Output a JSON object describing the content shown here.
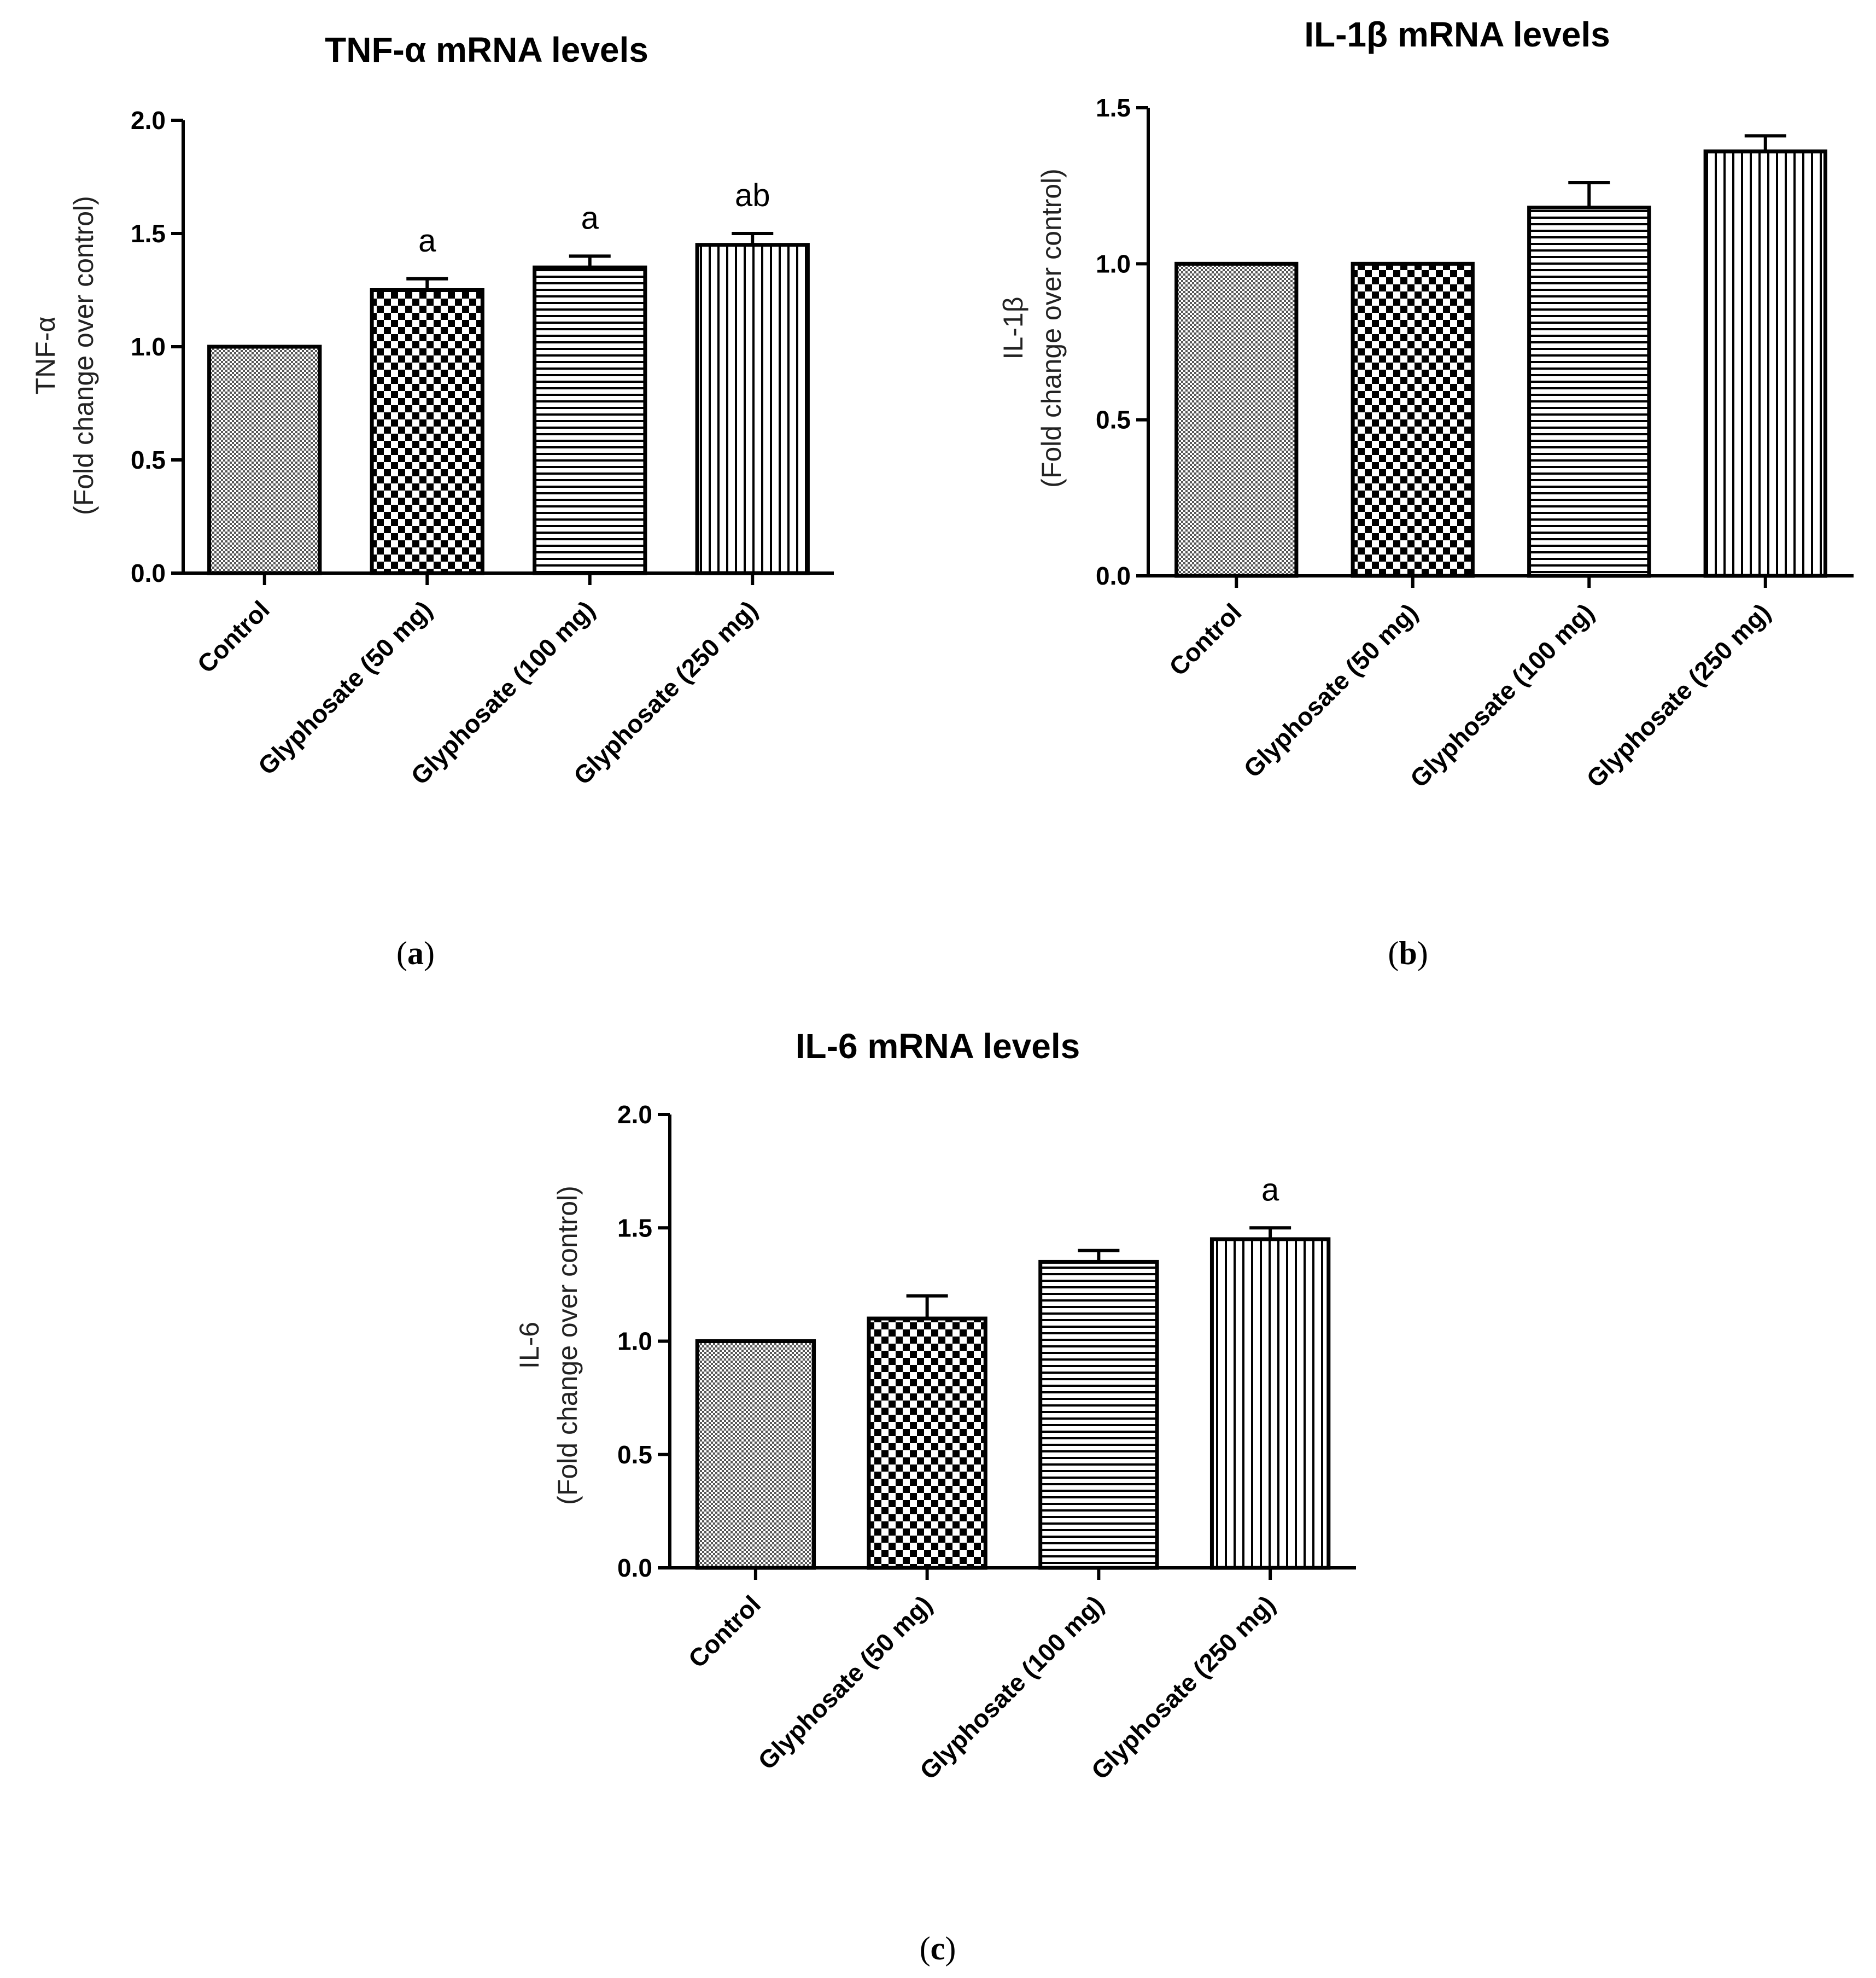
{
  "chart_data": [
    {
      "type": "bar",
      "panel": "a",
      "title": "TNF-α mRNA levels",
      "ylabel_main": "TNF-α",
      "ylabel_sub": "(Fold change over control)",
      "xlabel": "",
      "categories": [
        "Control",
        "Glyphosate (50 mg)",
        "Glyphosate (100 mg)",
        "Glyphosate (250 mg)"
      ],
      "values": [
        1.0,
        1.25,
        1.35,
        1.45
      ],
      "errors": [
        0.0,
        0.05,
        0.05,
        0.05
      ],
      "significance": [
        "",
        "a",
        "a",
        "ab"
      ],
      "patterns": [
        "fine",
        "checker",
        "hstripe",
        "vstripe"
      ],
      "ylim": [
        0.0,
        2.0
      ],
      "yticks": [
        0.0,
        0.5,
        1.0,
        1.5,
        2.0
      ],
      "ytick_labels": [
        "0.0",
        "0.5",
        "1.0",
        "1.5",
        "2.0"
      ],
      "grid": false
    },
    {
      "type": "bar",
      "panel": "b",
      "title": "IL-1β mRNA levels",
      "ylabel_main": "IL-1β",
      "ylabel_sub": "(Fold change over control)",
      "xlabel": "",
      "categories": [
        "Control",
        "Glyphosate (50 mg)",
        "Glyphosate (100 mg)",
        "Glyphosate (250 mg)"
      ],
      "values": [
        1.0,
        1.0,
        1.18,
        1.36
      ],
      "errors": [
        0.0,
        0.0,
        0.08,
        0.05
      ],
      "significance": [
        "",
        "",
        "",
        ""
      ],
      "patterns": [
        "fine",
        "checker",
        "hstripe",
        "vstripe"
      ],
      "ylim": [
        0.0,
        1.5
      ],
      "yticks": [
        0.0,
        0.5,
        1.0,
        1.5
      ],
      "ytick_labels": [
        "0.0",
        "0.5",
        "1.0",
        "1.5"
      ],
      "grid": false
    },
    {
      "type": "bar",
      "panel": "c",
      "title": "IL-6 mRNA levels",
      "ylabel_main": "IL-6",
      "ylabel_sub": "(Fold change over control)",
      "xlabel": "",
      "categories": [
        "Control",
        "Glyphosate (50 mg)",
        "Glyphosate (100 mg)",
        "Glyphosate (250 mg)"
      ],
      "values": [
        1.0,
        1.1,
        1.35,
        1.45
      ],
      "errors": [
        0.0,
        0.1,
        0.05,
        0.05
      ],
      "significance": [
        "",
        "",
        "",
        "a"
      ],
      "patterns": [
        "fine",
        "checker",
        "hstripe",
        "vstripe"
      ],
      "ylim": [
        0.0,
        2.0
      ],
      "yticks": [
        0.0,
        0.5,
        1.0,
        1.5,
        2.0
      ],
      "ytick_labels": [
        "0.0",
        "0.5",
        "1.0",
        "1.5",
        "2.0"
      ],
      "grid": false
    }
  ]
}
